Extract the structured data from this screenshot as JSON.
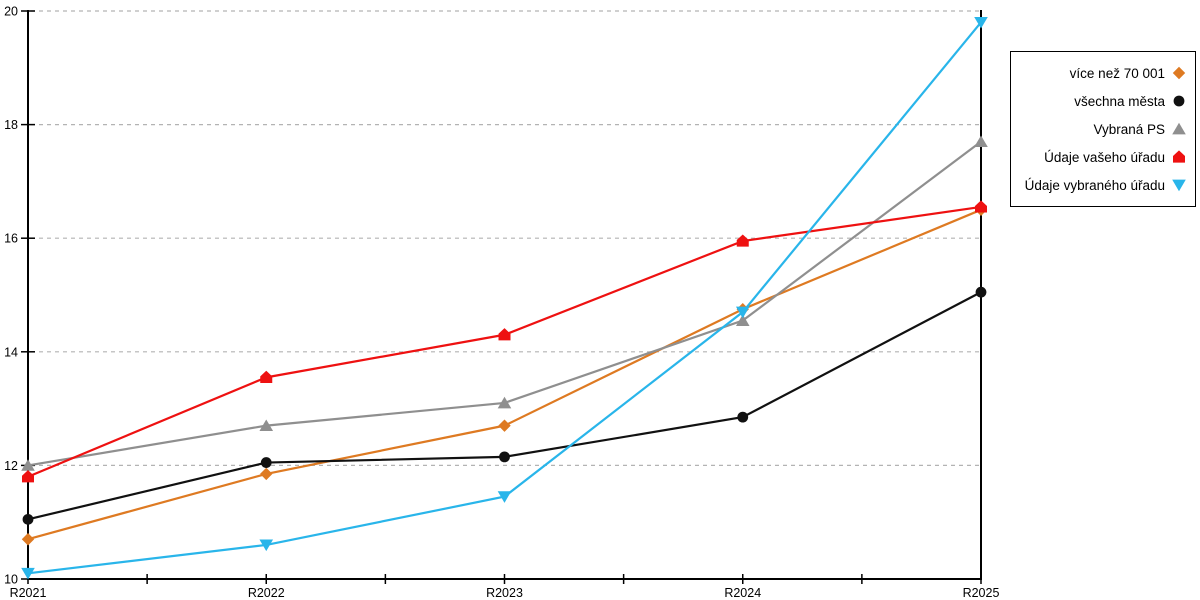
{
  "chart_data": {
    "type": "line",
    "title": "",
    "xlabel": "",
    "ylabel": "",
    "x_categories": [
      "R2021",
      "R2022",
      "R2023",
      "R2024",
      "R2025"
    ],
    "ylim": [
      10,
      20
    ],
    "y_ticks": [
      10,
      12,
      14,
      16,
      18,
      20
    ],
    "grid": "horizontal-dashed",
    "grid_color": "#b3b3b3",
    "axis_color": "#000000",
    "legend_position": "right-outside",
    "series": [
      {
        "name": "více než 70 001",
        "marker": "diamond",
        "color": "#de7a22",
        "values": [
          10.7,
          11.85,
          12.7,
          14.75,
          16.5
        ]
      },
      {
        "name": "všechna města",
        "marker": "circle",
        "color": "#111111",
        "values": [
          11.05,
          12.05,
          12.15,
          12.85,
          15.05
        ]
      },
      {
        "name": "Vybraná PS",
        "marker": "triangle-up",
        "color": "#8f8f8f",
        "values": [
          12.0,
          12.7,
          13.1,
          14.55,
          17.7
        ]
      },
      {
        "name": "Údaje vašeho úřadu",
        "marker": "pentagon",
        "color": "#ee1111",
        "values": [
          11.8,
          13.55,
          14.3,
          15.95,
          16.55
        ]
      },
      {
        "name": "Údaje vybraného úřadu",
        "marker": "triangle-down",
        "color": "#29b5ea",
        "values": [
          10.1,
          10.6,
          11.45,
          14.7,
          19.8
        ]
      }
    ]
  }
}
